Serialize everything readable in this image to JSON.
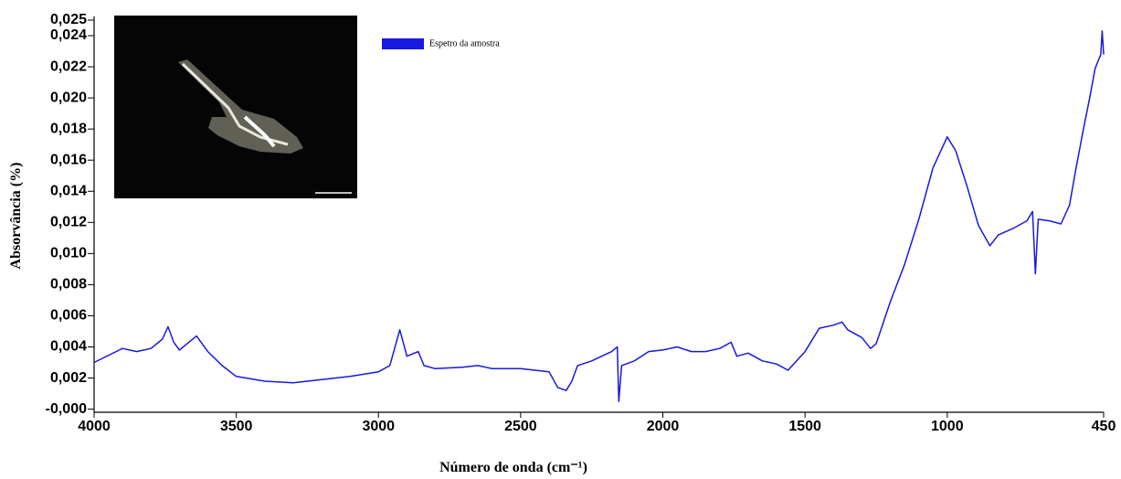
{
  "chart_data": {
    "type": "line",
    "xlabel": "Número de onda (cm⁻¹)",
    "ylabel": "Absorvância (%)",
    "xlim": [
      4000,
      450
    ],
    "xticks": [
      4000,
      3500,
      3000,
      2500,
      2000,
      1500,
      1000,
      450
    ],
    "ylim": [
      -0.0002,
      0.025
    ],
    "yticks": [
      {
        "value": 0,
        "label": "-0,000"
      },
      {
        "value": 0.002,
        "label": "0,002"
      },
      {
        "value": 0.004,
        "label": "0,004"
      },
      {
        "value": 0.006,
        "label": "0,006"
      },
      {
        "value": 0.008,
        "label": "0,008"
      },
      {
        "value": 0.01,
        "label": "0,010"
      },
      {
        "value": 0.012,
        "label": "0,012"
      },
      {
        "value": 0.014,
        "label": "0,014"
      },
      {
        "value": 0.016,
        "label": "0,016"
      },
      {
        "value": 0.018,
        "label": "0,018"
      },
      {
        "value": 0.02,
        "label": "0,020"
      },
      {
        "value": 0.022,
        "label": "0,022"
      },
      {
        "value": 0.024,
        "label": "0,024"
      },
      {
        "value": 0.025,
        "label": "0,025"
      }
    ],
    "legend": "upper-left",
    "x": [
      4000,
      3900,
      3850,
      3800,
      3760,
      3740,
      3720,
      3700,
      3660,
      3640,
      3600,
      3550,
      3500,
      3400,
      3300,
      3200,
      3100,
      3000,
      2960,
      2925,
      2900,
      2860,
      2840,
      2800,
      2700,
      2650,
      2600,
      2500,
      2400,
      2370,
      2340,
      2320,
      2300,
      2250,
      2180,
      2160,
      2155,
      2145,
      2100,
      2050,
      2000,
      1950,
      1900,
      1850,
      1800,
      1760,
      1740,
      1700,
      1650,
      1600,
      1560,
      1500,
      1450,
      1400,
      1370,
      1350,
      1300,
      1270,
      1250,
      1200,
      1150,
      1100,
      1050,
      1000,
      970,
      930,
      890,
      850,
      820,
      770,
      720,
      700,
      690,
      680,
      640,
      600,
      570,
      550,
      520,
      500,
      480,
      460,
      455,
      450
    ],
    "series": [
      {
        "name": "Espetro da amostra",
        "color": "#1818e0",
        "values": [
          0.003,
          0.0039,
          0.0037,
          0.0039,
          0.0045,
          0.0053,
          0.0043,
          0.0038,
          0.0044,
          0.0047,
          0.0037,
          0.0028,
          0.0021,
          0.0018,
          0.0017,
          0.0019,
          0.0021,
          0.0024,
          0.0028,
          0.0051,
          0.0034,
          0.0037,
          0.0028,
          0.0026,
          0.0027,
          0.0028,
          0.0026,
          0.0026,
          0.0024,
          0.0014,
          0.0012,
          0.0018,
          0.0028,
          0.0031,
          0.0037,
          0.004,
          0.0005,
          0.0028,
          0.0031,
          0.0037,
          0.0038,
          0.004,
          0.0037,
          0.0037,
          0.0039,
          0.0043,
          0.0034,
          0.0036,
          0.0031,
          0.0029,
          0.0025,
          0.0037,
          0.0052,
          0.0054,
          0.0056,
          0.0051,
          0.0046,
          0.0039,
          0.0042,
          0.0069,
          0.0093,
          0.0122,
          0.0155,
          0.0175,
          0.0166,
          0.0143,
          0.0118,
          0.0105,
          0.0112,
          0.0116,
          0.0121,
          0.0127,
          0.0087,
          0.0122,
          0.0121,
          0.0119,
          0.0131,
          0.0152,
          0.0181,
          0.0199,
          0.0219,
          0.0228,
          0.0243,
          0.0228
        ]
      }
    ]
  }
}
